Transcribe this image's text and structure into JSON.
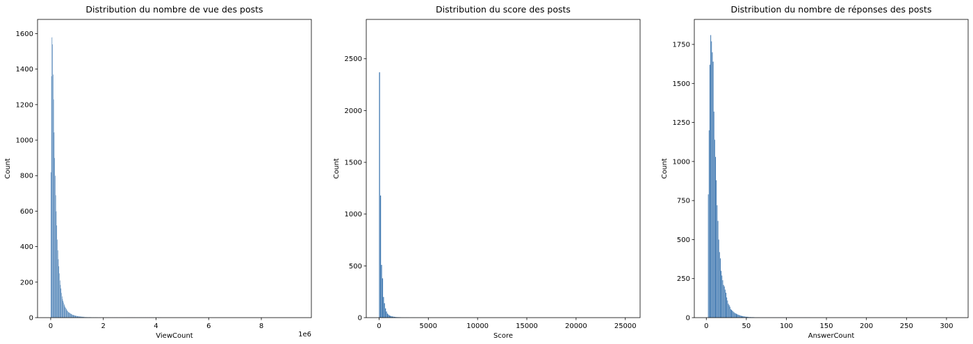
{
  "chart_data": [
    {
      "type": "bar",
      "title": "Distribution du nombre de vue des posts",
      "xlabel": "ViewCount",
      "ylabel": "Count",
      "offset_text": "1e6",
      "color": "#3b75af",
      "xlim": [
        -0.5,
        9.9
      ],
      "ylim": [
        0,
        1680
      ],
      "xticks": [
        0,
        2,
        4,
        6,
        8
      ],
      "xtick_labels": [
        "0",
        "2",
        "4",
        "6",
        "8"
      ],
      "yticks": [
        0,
        200,
        400,
        600,
        800,
        1000,
        1200,
        1400,
        1600
      ],
      "ytick_labels": [
        "0",
        "200",
        "400",
        "600",
        "800",
        "1000",
        "1200",
        "1400",
        "1600"
      ],
      "bin_width": 0.02,
      "x_start": 0,
      "values": [
        820,
        1360,
        1580,
        1540,
        1370,
        1230,
        1045,
        900,
        800,
        690,
        600,
        520,
        440,
        380,
        330,
        290,
        250,
        210,
        185,
        165,
        140,
        120,
        105,
        95,
        85,
        75,
        68,
        60,
        55,
        50,
        45,
        40,
        36,
        33,
        30,
        28,
        26,
        24,
        22,
        20,
        18,
        17,
        16,
        15,
        14,
        13,
        12,
        11,
        10,
        10,
        9,
        9,
        8,
        8,
        7,
        7,
        7,
        6,
        6,
        6,
        5,
        5,
        5,
        5,
        4,
        4,
        4,
        4,
        4,
        3,
        3,
        3,
        3,
        3,
        3,
        3,
        2,
        2,
        2,
        2,
        2,
        2,
        2,
        2,
        2,
        2,
        2,
        2,
        2,
        1,
        1,
        1,
        1,
        1,
        1,
        1,
        1,
        1,
        1,
        1,
        1,
        1,
        1,
        1,
        1,
        1,
        1,
        1,
        1,
        1,
        1,
        1,
        1,
        1,
        1,
        1,
        1,
        1,
        1,
        1,
        1,
        1,
        1,
        1,
        1,
        1,
        1,
        1,
        1,
        1,
        1,
        1,
        1,
        1,
        1,
        1,
        1,
        1,
        1,
        1,
        1,
        1,
        1,
        1,
        1,
        1,
        1,
        1,
        1,
        1,
        1,
        1,
        1,
        1,
        1,
        1,
        1,
        1,
        1,
        1,
        1,
        1,
        1,
        1,
        1,
        1,
        1,
        1,
        1,
        1,
        1,
        1,
        1,
        1,
        1,
        1,
        1,
        1,
        1,
        1,
        1,
        1,
        1,
        1,
        1,
        1,
        1,
        1,
        1,
        1,
        1,
        1,
        1,
        1,
        1,
        1,
        1,
        1,
        1,
        1,
        1,
        1,
        1,
        1,
        1,
        1,
        1,
        1,
        1,
        1
      ]
    },
    {
      "type": "bar",
      "title": "Distribution du score des posts",
      "xlabel": "Score",
      "ylabel": "Count",
      "color": "#3b75af",
      "xlim": [
        -1300,
        26500
      ],
      "ylim": [
        0,
        2880
      ],
      "xticks": [
        0,
        5000,
        10000,
        15000,
        20000,
        25000
      ],
      "xtick_labels": [
        "0",
        "5000",
        "10000",
        "15000",
        "20000",
        "25000"
      ],
      "yticks": [
        0,
        500,
        1000,
        1500,
        2000,
        2500
      ],
      "ytick_labels": [
        "0",
        "500",
        "1000",
        "1500",
        "2000",
        "2500"
      ],
      "bin_width": 100,
      "x_start": 0,
      "values": [
        2370,
        1180,
        510,
        380,
        200,
        140,
        90,
        60,
        40,
        30,
        22,
        18,
        14,
        12,
        10,
        8,
        7,
        6,
        5,
        5,
        4,
        4,
        3,
        3,
        3,
        2,
        2,
        2,
        2,
        2,
        1,
        1,
        1,
        1,
        1,
        1,
        1,
        1,
        1,
        1
      ]
    },
    {
      "type": "bar",
      "title": "Distribution du nombre de réponses des posts",
      "xlabel": "AnswerCount",
      "ylabel": "Count",
      "color": "#3b75af",
      "xlim": [
        -15,
        327
      ],
      "ylim": [
        0,
        1910
      ],
      "xticks": [
        0,
        50,
        100,
        150,
        200,
        250,
        300
      ],
      "xtick_labels": [
        "0",
        "50",
        "100",
        "150",
        "200",
        "250",
        "300"
      ],
      "yticks": [
        0,
        250,
        500,
        750,
        1000,
        1250,
        1500,
        1750
      ],
      "ytick_labels": [
        "0",
        "250",
        "500",
        "750",
        "1000",
        "1250",
        "1500",
        "1750"
      ],
      "bin_width": 1,
      "x_start": 2,
      "values": [
        790,
        1200,
        1620,
        1810,
        1770,
        1700,
        1640,
        1320,
        1140,
        1030,
        880,
        720,
        620,
        500,
        420,
        380,
        300,
        270,
        240,
        210,
        200,
        180,
        160,
        130,
        110,
        90,
        80,
        70,
        55,
        50,
        45,
        40,
        35,
        30,
        28,
        25,
        22,
        20,
        18,
        16,
        14,
        12,
        11,
        10,
        9,
        8,
        7,
        6,
        6,
        5,
        5,
        4,
        4,
        4,
        3,
        3,
        3,
        3,
        2,
        2,
        2,
        2,
        2,
        2,
        2,
        1,
        1,
        1,
        1,
        1,
        1,
        1,
        1,
        1,
        1,
        1,
        1,
        1,
        1,
        1,
        1,
        1,
        1,
        1,
        1,
        1,
        1,
        1,
        1,
        1,
        1,
        1,
        1,
        1,
        1,
        1,
        1,
        1,
        1,
        1,
        1,
        1,
        1,
        1,
        1,
        1,
        1,
        1,
        1,
        1,
        1,
        1,
        1,
        1,
        1,
        1,
        1,
        1,
        1,
        1,
        1,
        1,
        1,
        1,
        1,
        1,
        1,
        1
      ]
    }
  ]
}
